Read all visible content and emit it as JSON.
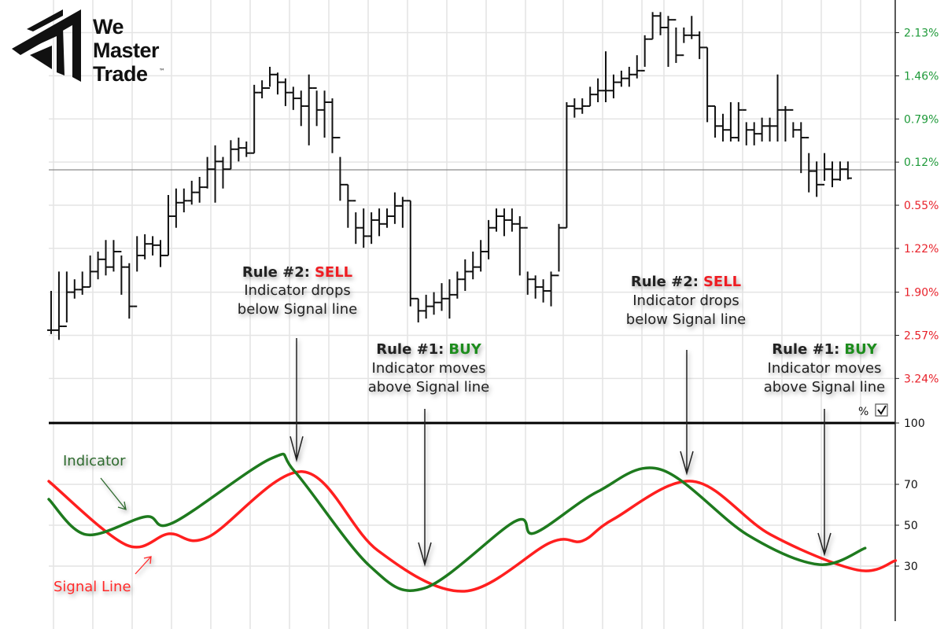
{
  "logo": {
    "lines": [
      "We",
      "Master",
      "Trade"
    ],
    "tm": "™"
  },
  "colors": {
    "up_label": "#1f9a3a",
    "down_label": "#e8212a",
    "indicator": "#1e7a1e",
    "signal": "#ff1f1f",
    "bar": "#111111",
    "grid": "#e4e4e4",
    "buy": "#1e8c1e",
    "sell": "#ee1c24"
  },
  "chart_data": [
    {
      "type": "bar",
      "subtype": "ohlc",
      "x_is": "bar index",
      "y_unit": "%",
      "reference_line": 0,
      "grid": true,
      "yticks": [
        {
          "label": "2.13%",
          "value": 2.13,
          "color": "up"
        },
        {
          "label": "1.46%",
          "value": 1.46,
          "color": "up"
        },
        {
          "label": "0.79%",
          "value": 0.79,
          "color": "up"
        },
        {
          "label": "0.12%",
          "value": 0.12,
          "color": "up"
        },
        {
          "label": "0.55%",
          "value": -0.55,
          "color": "down"
        },
        {
          "label": "1.22%",
          "value": -1.22,
          "color": "down"
        },
        {
          "label": "1.90%",
          "value": -1.9,
          "color": "down"
        },
        {
          "label": "2.57%",
          "value": -2.57,
          "color": "down"
        },
        {
          "label": "3.24%",
          "value": -3.24,
          "color": "down"
        }
      ],
      "bars_hlc": [
        [
          -1.88,
          -2.55,
          -2.49
        ],
        [
          -1.58,
          -2.64,
          -2.43
        ],
        [
          -1.58,
          -2.37,
          -1.9
        ],
        [
          -1.7,
          -2.0,
          -1.86
        ],
        [
          -1.58,
          -1.94,
          -1.82
        ],
        [
          -1.33,
          -1.82,
          -1.58
        ],
        [
          -1.27,
          -1.7,
          -1.39
        ],
        [
          -1.09,
          -1.64,
          -1.51
        ],
        [
          -1.09,
          -1.58,
          -1.27
        ],
        [
          -1.33,
          -1.94,
          -1.51
        ],
        [
          -1.45,
          -2.31,
          -2.12
        ],
        [
          -1.03,
          -1.58,
          -1.33
        ],
        [
          -1.0,
          -1.39,
          -1.15
        ],
        [
          -1.03,
          -1.33,
          -1.17
        ],
        [
          -1.09,
          -1.51,
          -1.33
        ],
        [
          -0.39,
          -1.33,
          -0.72
        ],
        [
          -0.29,
          -0.9,
          -0.51
        ],
        [
          -0.29,
          -0.66,
          -0.48
        ],
        [
          -0.17,
          -0.54,
          -0.35
        ],
        [
          -0.11,
          -0.51,
          -0.27
        ],
        [
          0.2,
          -0.29,
          0.01
        ],
        [
          0.38,
          -0.51,
          0.13
        ],
        [
          0.2,
          -0.29,
          0.01
        ],
        [
          0.46,
          0.01,
          0.32
        ],
        [
          0.5,
          0.13,
          0.34
        ],
        [
          0.44,
          0.2,
          0.26
        ],
        [
          1.32,
          0.26,
          1.2
        ],
        [
          1.39,
          1.11,
          1.27
        ],
        [
          1.6,
          1.29,
          1.48
        ],
        [
          1.51,
          1.17,
          1.36
        ],
        [
          1.42,
          0.99,
          1.2
        ],
        [
          1.29,
          0.93,
          1.11
        ],
        [
          1.23,
          0.68,
          0.99
        ],
        [
          1.48,
          0.38,
          1.27
        ],
        [
          1.23,
          0.68,
          0.93
        ],
        [
          1.23,
          0.5,
          1.05
        ],
        [
          1.11,
          0.26,
          0.5
        ],
        [
          0.2,
          -0.48,
          -0.23
        ],
        [
          -0.23,
          -0.9,
          -0.48
        ],
        [
          -0.66,
          -1.15,
          -0.9
        ],
        [
          -0.6,
          -1.21,
          -1.03
        ],
        [
          -0.66,
          -1.15,
          -0.78
        ],
        [
          -0.6,
          -1.03,
          -0.84
        ],
        [
          -0.6,
          -0.9,
          -0.72
        ],
        [
          -0.35,
          -0.84,
          -0.56
        ],
        [
          -0.42,
          -0.9,
          -0.48
        ],
        [
          -0.48,
          -2.12,
          -2.0
        ],
        [
          -2.0,
          -2.37,
          -2.19
        ],
        [
          -1.94,
          -2.31,
          -2.12
        ],
        [
          -1.9,
          -2.25,
          -2.06
        ],
        [
          -1.76,
          -2.19,
          -2.0
        ],
        [
          -1.7,
          -2.31,
          -1.94
        ],
        [
          -1.58,
          -2.0,
          -1.7
        ],
        [
          -1.39,
          -1.88,
          -1.58
        ],
        [
          -1.27,
          -1.7,
          -1.51
        ],
        [
          -1.09,
          -1.58,
          -1.27
        ],
        [
          -0.78,
          -1.39,
          -0.9
        ],
        [
          -0.6,
          -0.96,
          -0.72
        ],
        [
          -0.6,
          -1.03,
          -0.78
        ],
        [
          -0.6,
          -0.96,
          -0.84
        ],
        [
          -0.72,
          -1.64,
          -0.9
        ],
        [
          -1.58,
          -1.94,
          -1.7
        ],
        [
          -1.64,
          -2.0,
          -1.82
        ],
        [
          -1.7,
          -2.06,
          -1.88
        ],
        [
          -1.58,
          -2.12,
          -1.64
        ],
        [
          -0.84,
          -1.58,
          -0.9
        ],
        [
          1.05,
          -0.9,
          0.99
        ],
        [
          1.11,
          0.81,
          0.95
        ],
        [
          1.11,
          0.87,
          0.99
        ],
        [
          1.29,
          0.99,
          1.17
        ],
        [
          1.42,
          1.05,
          1.23
        ],
        [
          1.84,
          1.05,
          1.23
        ],
        [
          1.48,
          1.11,
          1.36
        ],
        [
          1.54,
          1.29,
          1.42
        ],
        [
          1.6,
          1.29,
          1.48
        ],
        [
          1.78,
          1.42,
          1.54
        ],
        [
          2.09,
          1.6,
          2.03
        ],
        [
          2.45,
          2.03,
          2.39
        ],
        [
          2.45,
          2.09,
          2.21
        ],
        [
          2.39,
          1.6,
          2.33
        ],
        [
          2.21,
          1.66,
          1.78
        ],
        [
          2.21,
          1.97,
          2.09
        ],
        [
          2.39,
          2.03,
          2.09
        ],
        [
          2.15,
          1.72,
          1.9
        ],
        [
          1.9,
          0.74,
          0.99
        ],
        [
          0.99,
          0.5,
          0.68
        ],
        [
          0.87,
          0.44,
          0.62
        ],
        [
          1.05,
          0.44,
          0.5
        ],
        [
          1.05,
          0.44,
          0.93
        ],
        [
          0.74,
          0.38,
          0.62
        ],
        [
          0.74,
          0.38,
          0.56
        ],
        [
          0.81,
          0.44,
          0.68
        ],
        [
          0.81,
          0.44,
          0.68
        ],
        [
          1.48,
          0.44,
          0.93
        ],
        [
          0.99,
          0.44,
          0.93
        ],
        [
          0.74,
          0.5,
          0.62
        ],
        [
          0.74,
          -0.05,
          0.5
        ],
        [
          0.26,
          -0.35,
          -0.02
        ],
        [
          0.13,
          -0.42,
          -0.23
        ],
        [
          0.26,
          -0.17,
          0.01
        ],
        [
          0.13,
          -0.27,
          -0.15
        ],
        [
          0.13,
          -0.17,
          0.01
        ],
        [
          0.13,
          -0.15,
          -0.13
        ]
      ]
    },
    {
      "type": "line",
      "x_is": "bar index",
      "ylim": [
        0,
        100
      ],
      "yticks": [
        100,
        70,
        50,
        30
      ],
      "grid": true,
      "series": [
        {
          "name": "Indicator",
          "color": "indicator",
          "points": [
            [
              -0.3,
              62.7
            ],
            [
              4.5,
              45.4
            ],
            [
              12.1,
              54.2
            ],
            [
              15.6,
              51.2
            ],
            [
              28.2,
              82.7
            ],
            [
              31.2,
              76.2
            ],
            [
              40.8,
              30.0
            ],
            [
              47.8,
              19.2
            ],
            [
              59.4,
              51.9
            ],
            [
              61.9,
              46.2
            ],
            [
              70,
              66.5
            ],
            [
              78,
              77.3
            ],
            [
              89.1,
              45.4
            ],
            [
              98.2,
              30.8
            ],
            [
              104.2,
              38.8
            ]
          ]
        },
        {
          "name": "Signal Line",
          "color": "signal",
          "points": [
            [
              -0.3,
              71.5
            ],
            [
              9.6,
              40.4
            ],
            [
              15.1,
              45.8
            ],
            [
              20.1,
              44.2
            ],
            [
              32.2,
              76.2
            ],
            [
              41.8,
              37.7
            ],
            [
              52.9,
              17.7
            ],
            [
              63.9,
              41.5
            ],
            [
              68,
              42.3
            ],
            [
              72,
              53.0
            ],
            [
              82.1,
              71.5
            ],
            [
              92.1,
              45.4
            ],
            [
              103.2,
              28.1
            ],
            [
              108.1,
              32.7
            ]
          ]
        }
      ]
    }
  ],
  "annotations": [
    {
      "rule": "Rule #2:",
      "action": "SELL",
      "action_color": "sell",
      "line1": "Indicator drops",
      "line2": "below Signal line"
    },
    {
      "rule": "Rule #1:",
      "action": "BUY",
      "action_color": "buy",
      "line1": "Indicator moves",
      "line2": "above Signal line"
    },
    {
      "rule": "Rule #2:",
      "action": "SELL",
      "action_color": "sell",
      "line1": "Indicator drops",
      "line2": "below Signal line"
    },
    {
      "rule": "Rule #1:",
      "action": "BUY",
      "action_color": "buy",
      "line1": "Indicator moves",
      "line2": "above Signal line"
    }
  ],
  "labels": {
    "indicator": "Indicator",
    "signal": "Signal Line",
    "percent_toggle": "%",
    "percent_checked": true
  }
}
